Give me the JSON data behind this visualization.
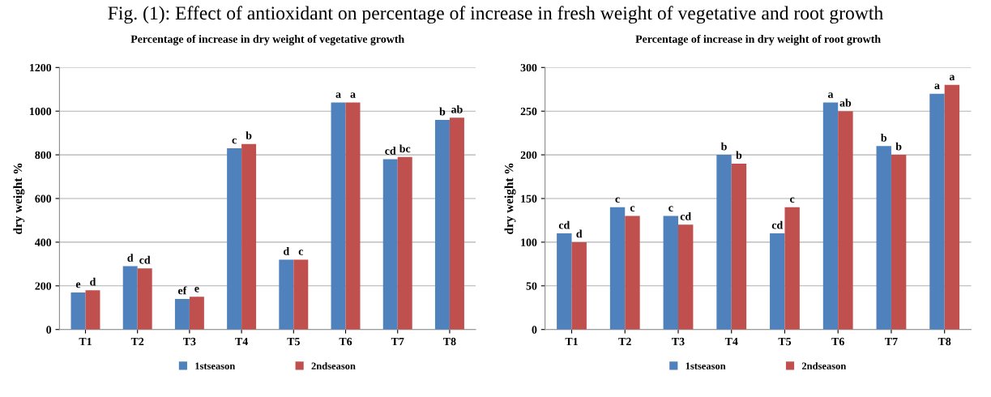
{
  "chart_data": [
    {
      "type": "bar",
      "title": "Percentage of increase in dry weight of vegetative growth",
      "ylabel": "dry weight %",
      "annotations": [
        "Fig. (1): Effect of antioxidant on percentage of increase in fresh weight of vegetative and root growth"
      ],
      "categories": [
        "T1",
        "T2",
        "T3",
        "T4",
        "T5",
        "T6",
        "T7",
        "T8"
      ],
      "series": [
        {
          "name": "1stseason",
          "color": "#4f81bd",
          "values": [
            170,
            290,
            140,
            830,
            320,
            1040,
            780,
            960
          ],
          "value_labels": [
            "e",
            "d",
            "ef",
            "c",
            "d",
            "a",
            "cd",
            "b"
          ]
        },
        {
          "name": "2ndseason",
          "color": "#c0504d",
          "values": [
            180,
            280,
            150,
            850,
            320,
            1040,
            790,
            970
          ],
          "value_labels": [
            "d",
            "cd",
            "e",
            "b",
            "c",
            "a",
            "bc",
            "ab"
          ]
        }
      ],
      "ylim": [
        0,
        1200
      ],
      "yticks": [
        0,
        200,
        400,
        600,
        800,
        1000,
        1200
      ],
      "grid": "y",
      "legend": "bottom"
    },
    {
      "type": "bar",
      "title": "Percentage of increase in dry weight of root growth",
      "ylabel": "dry weight %",
      "categories": [
        "T1",
        "T2",
        "T3",
        "T4",
        "T5",
        "T6",
        "T7",
        "T8"
      ],
      "series": [
        {
          "name": "1stseason",
          "color": "#4f81bd",
          "values": [
            110,
            140,
            130,
            200,
            110,
            260,
            210,
            270
          ],
          "value_labels": [
            "cd",
            "c",
            "c",
            "b",
            "cd",
            "a",
            "b",
            "a"
          ]
        },
        {
          "name": "2ndseason",
          "color": "#c0504d",
          "values": [
            100,
            130,
            120,
            190,
            140,
            250,
            200,
            280
          ],
          "value_labels": [
            "d",
            "c",
            "cd",
            "b",
            "c",
            "ab",
            "b",
            "a"
          ]
        }
      ],
      "ylim": [
        0,
        300
      ],
      "yticks": [
        0,
        50,
        100,
        150,
        200,
        250,
        300
      ],
      "grid": "y",
      "legend": "bottom"
    }
  ]
}
